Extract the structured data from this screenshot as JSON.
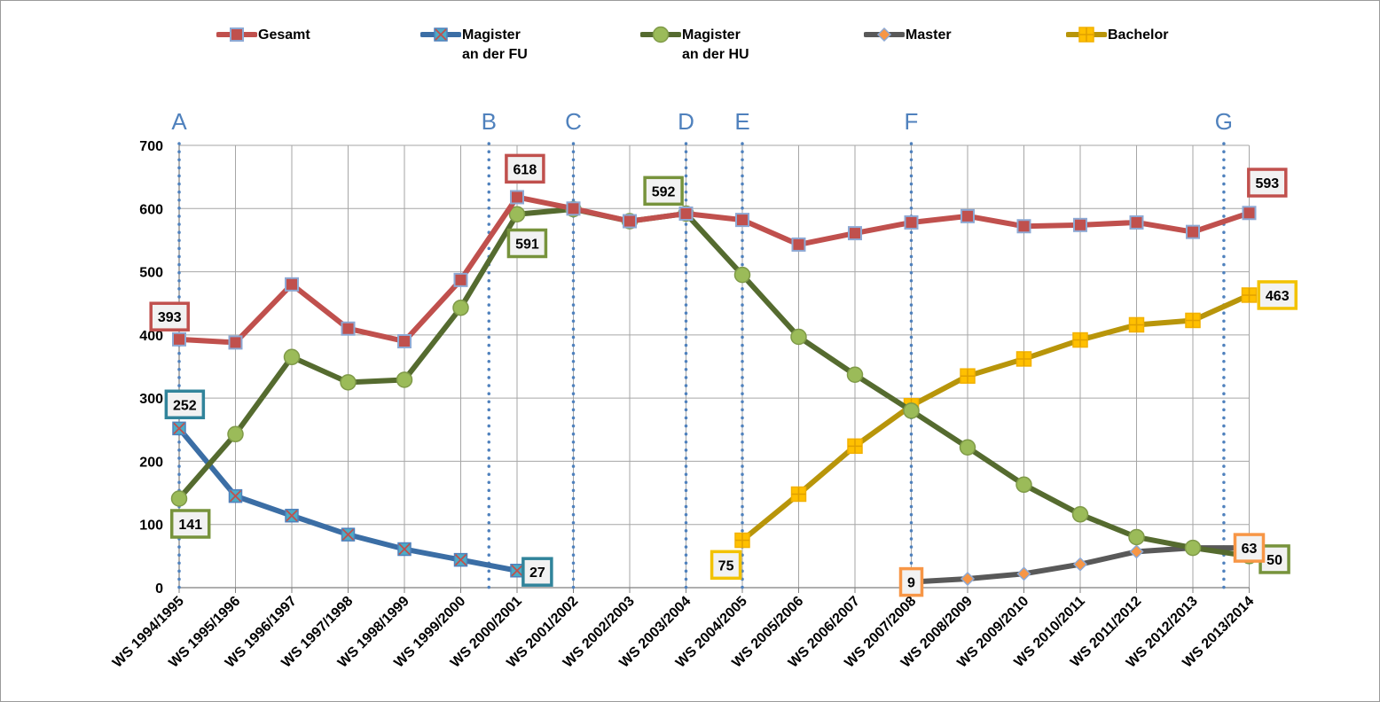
{
  "chart_data": {
    "type": "line",
    "categories": [
      "WS 1994/1995",
      "WS 1995/1996",
      "WS 1996/1997",
      "WS 1997/1998",
      "WS 1998/1999",
      "WS 1999/2000",
      "WS 2000/2001",
      "WS 2001/2002",
      "WS 2002/2003",
      "WS 2003/2004",
      "WS 2004/2005",
      "WS 2005/2006",
      "WS 2006/2007",
      "WS 2007/2008",
      "WS 2008/2009",
      "WS 2009/2010",
      "WS 2010/2011",
      "WS 2011/2012",
      "WS 2012/2013",
      "WS 2013/2014"
    ],
    "ylim": [
      0,
      700
    ],
    "yticks": [
      "0",
      "100",
      "200",
      "300",
      "400",
      "500",
      "600",
      "700"
    ],
    "grid": true,
    "legend_position": "top",
    "series": [
      {
        "key": "gesamt",
        "name": "Gesamt",
        "color": "#c0504d",
        "marker": "square",
        "values": [
          393,
          388,
          480,
          410,
          390,
          487,
          618,
          600,
          580,
          592,
          582,
          543,
          561,
          578,
          588,
          572,
          574,
          578,
          563,
          593
        ]
      },
      {
        "key": "fu",
        "name": "Magister\nan der FU",
        "color": "#3b6ea5",
        "marker": "x-square",
        "values": [
          252,
          145,
          114,
          84,
          61,
          44,
          27,
          null,
          null,
          null,
          null,
          null,
          null,
          null,
          null,
          null,
          null,
          null,
          null,
          null
        ]
      },
      {
        "key": "hu",
        "name": "Magister\nan der HU",
        "color": "#556b2f",
        "marker": "circle",
        "values": [
          141,
          243,
          365,
          325,
          329,
          443,
          591,
          599,
          580,
          592,
          495,
          397,
          337,
          280,
          222,
          163,
          116,
          80,
          63,
          50
        ]
      },
      {
        "key": "master",
        "name": "Master",
        "color": "#595959",
        "marker": "diamond",
        "values": [
          null,
          null,
          null,
          null,
          null,
          null,
          null,
          null,
          null,
          null,
          null,
          null,
          null,
          9,
          14,
          22,
          37,
          57,
          63,
          63
        ]
      },
      {
        "key": "bachelor",
        "name": "Bachelor",
        "color": "#b8950a",
        "marker": "plus-square",
        "values": [
          null,
          null,
          null,
          null,
          null,
          null,
          null,
          null,
          null,
          null,
          75,
          148,
          224,
          288,
          335,
          362,
          392,
          416,
          423,
          463
        ]
      }
    ],
    "phase_markers": [
      {
        "label": "A",
        "x": 0
      },
      {
        "label": "B",
        "x": 5.5
      },
      {
        "label": "C",
        "x": 7
      },
      {
        "label": "D",
        "x": 9
      },
      {
        "label": "E",
        "x": 10
      },
      {
        "label": "F",
        "x": 13
      },
      {
        "label": "G",
        "x": 18.55
      }
    ],
    "annotations": [
      {
        "text": "393",
        "series": "gesamt",
        "index": 0,
        "border": "#c0504d",
        "dx": -0.17,
        "dv": 36
      },
      {
        "text": "618",
        "series": "gesamt",
        "index": 6,
        "border": "#c0504d",
        "dx": 0.14,
        "dv": 45
      },
      {
        "text": "593",
        "series": "gesamt",
        "index": 19,
        "border": "#c0504d",
        "dx": 0.32,
        "dv": 48
      },
      {
        "text": "252",
        "series": "fu",
        "index": 0,
        "border": "#31849b",
        "dx": 0.1,
        "dv": 38
      },
      {
        "text": "27",
        "series": "fu",
        "index": 6,
        "border": "#31849b",
        "dx": 0.36,
        "dv": -2
      },
      {
        "text": "592",
        "series": "hu",
        "index": 9,
        "border": "#77933c",
        "dx": -0.4,
        "dv": 36
      },
      {
        "text": "591",
        "series": "hu",
        "index": 6,
        "border": "#77933c",
        "dx": 0.18,
        "dv": -46
      },
      {
        "text": "141",
        "series": "hu",
        "index": 0,
        "border": "#77933c",
        "dx": 0.2,
        "dv": -40
      },
      {
        "text": "50",
        "series": "hu",
        "index": 19,
        "border": "#77933c",
        "dx": 0.45,
        "dv": -5
      },
      {
        "text": "9",
        "series": "master",
        "index": 13,
        "border": "#f79646",
        "dx": 0.0,
        "dv": 0
      },
      {
        "text": "63",
        "series": "master",
        "index": 19,
        "border": "#f79646",
        "dx": 0.0,
        "dv": 0
      },
      {
        "text": "75",
        "series": "bachelor",
        "index": 10,
        "border": "#f2c200",
        "dx": -0.29,
        "dv": -39
      },
      {
        "text": "463",
        "series": "bachelor",
        "index": 19,
        "border": "#f2c200",
        "dx": 0.5,
        "dv": 0
      }
    ]
  }
}
